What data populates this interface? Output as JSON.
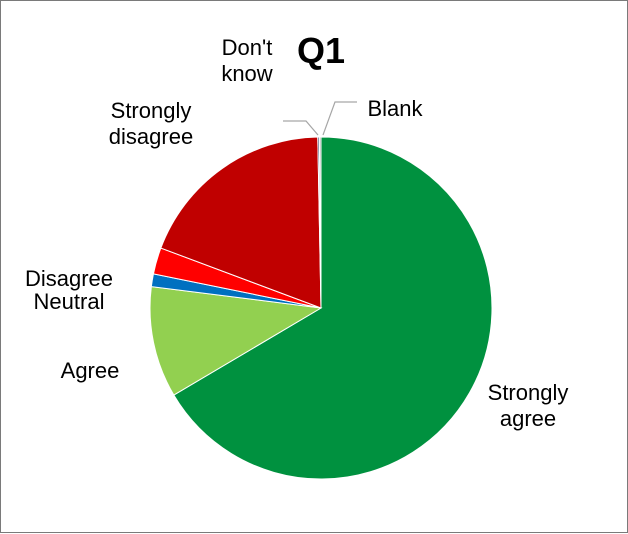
{
  "chart_data": {
    "type": "pie",
    "title": "Q1",
    "slices": [
      {
        "label": "Strongly agree",
        "value": 66.5,
        "color": "#00913f"
      },
      {
        "label": "Agree",
        "value": 10.5,
        "color": "#92d050"
      },
      {
        "label": "Neutral",
        "value": 1.2,
        "color": "#0070c0"
      },
      {
        "label": "Disagree",
        "value": 2.5,
        "color": "#ff0000"
      },
      {
        "label": "Strongly disagree",
        "value": 19.0,
        "color": "#c00000"
      },
      {
        "label": "Don't know",
        "value": 0.15,
        "color": "#1f3864"
      },
      {
        "label": "Blank",
        "value": 0.15,
        "color": "#a5a5a5"
      }
    ],
    "label_lines": {
      "Strongly agree": [
        "Strongly",
        "agree"
      ],
      "Agree": [
        "Agree"
      ],
      "Neutral": [
        "Neutral"
      ],
      "Disagree": [
        "Disagree"
      ],
      "Strongly disagree": [
        "Strongly",
        "disagree"
      ],
      "Don't know": [
        "Don't",
        "know"
      ],
      "Blank": [
        "Blank"
      ]
    },
    "legend": "none"
  }
}
